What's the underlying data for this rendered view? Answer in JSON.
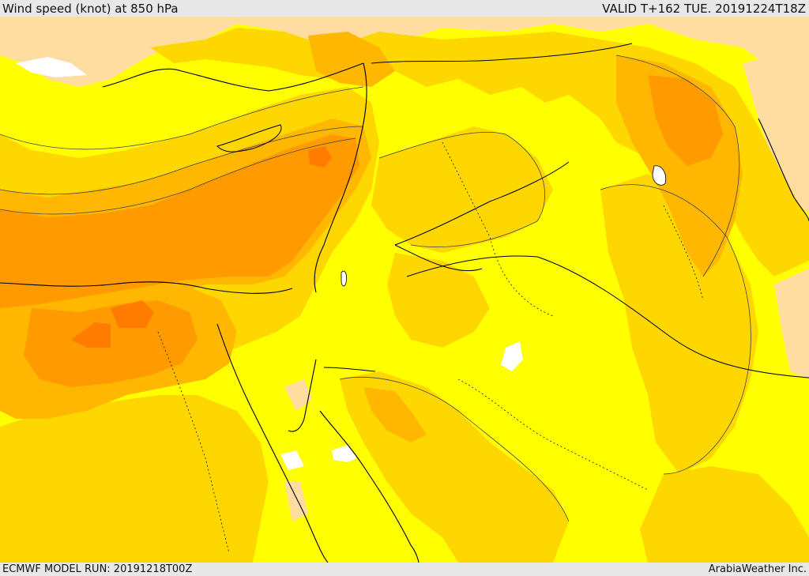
{
  "header": {
    "title": "Wind speed (knot) at 850 hPa",
    "valid_time": "VALID T+162 TUE. 20191224T18Z"
  },
  "footer": {
    "model_run": "ECMWF MODEL RUN: 20191218T00Z",
    "credit": "ArabiaWeather Inc."
  },
  "map": {
    "fill_colors": {
      "very_light": "#ffffff",
      "light": "#ffdda0",
      "yellow": "#ffff00",
      "gold": "#ffd700",
      "amber": "#ffb700",
      "orange": "#ff9b00",
      "dark_orange": "#ff7c00"
    },
    "line_color": "#000000"
  }
}
